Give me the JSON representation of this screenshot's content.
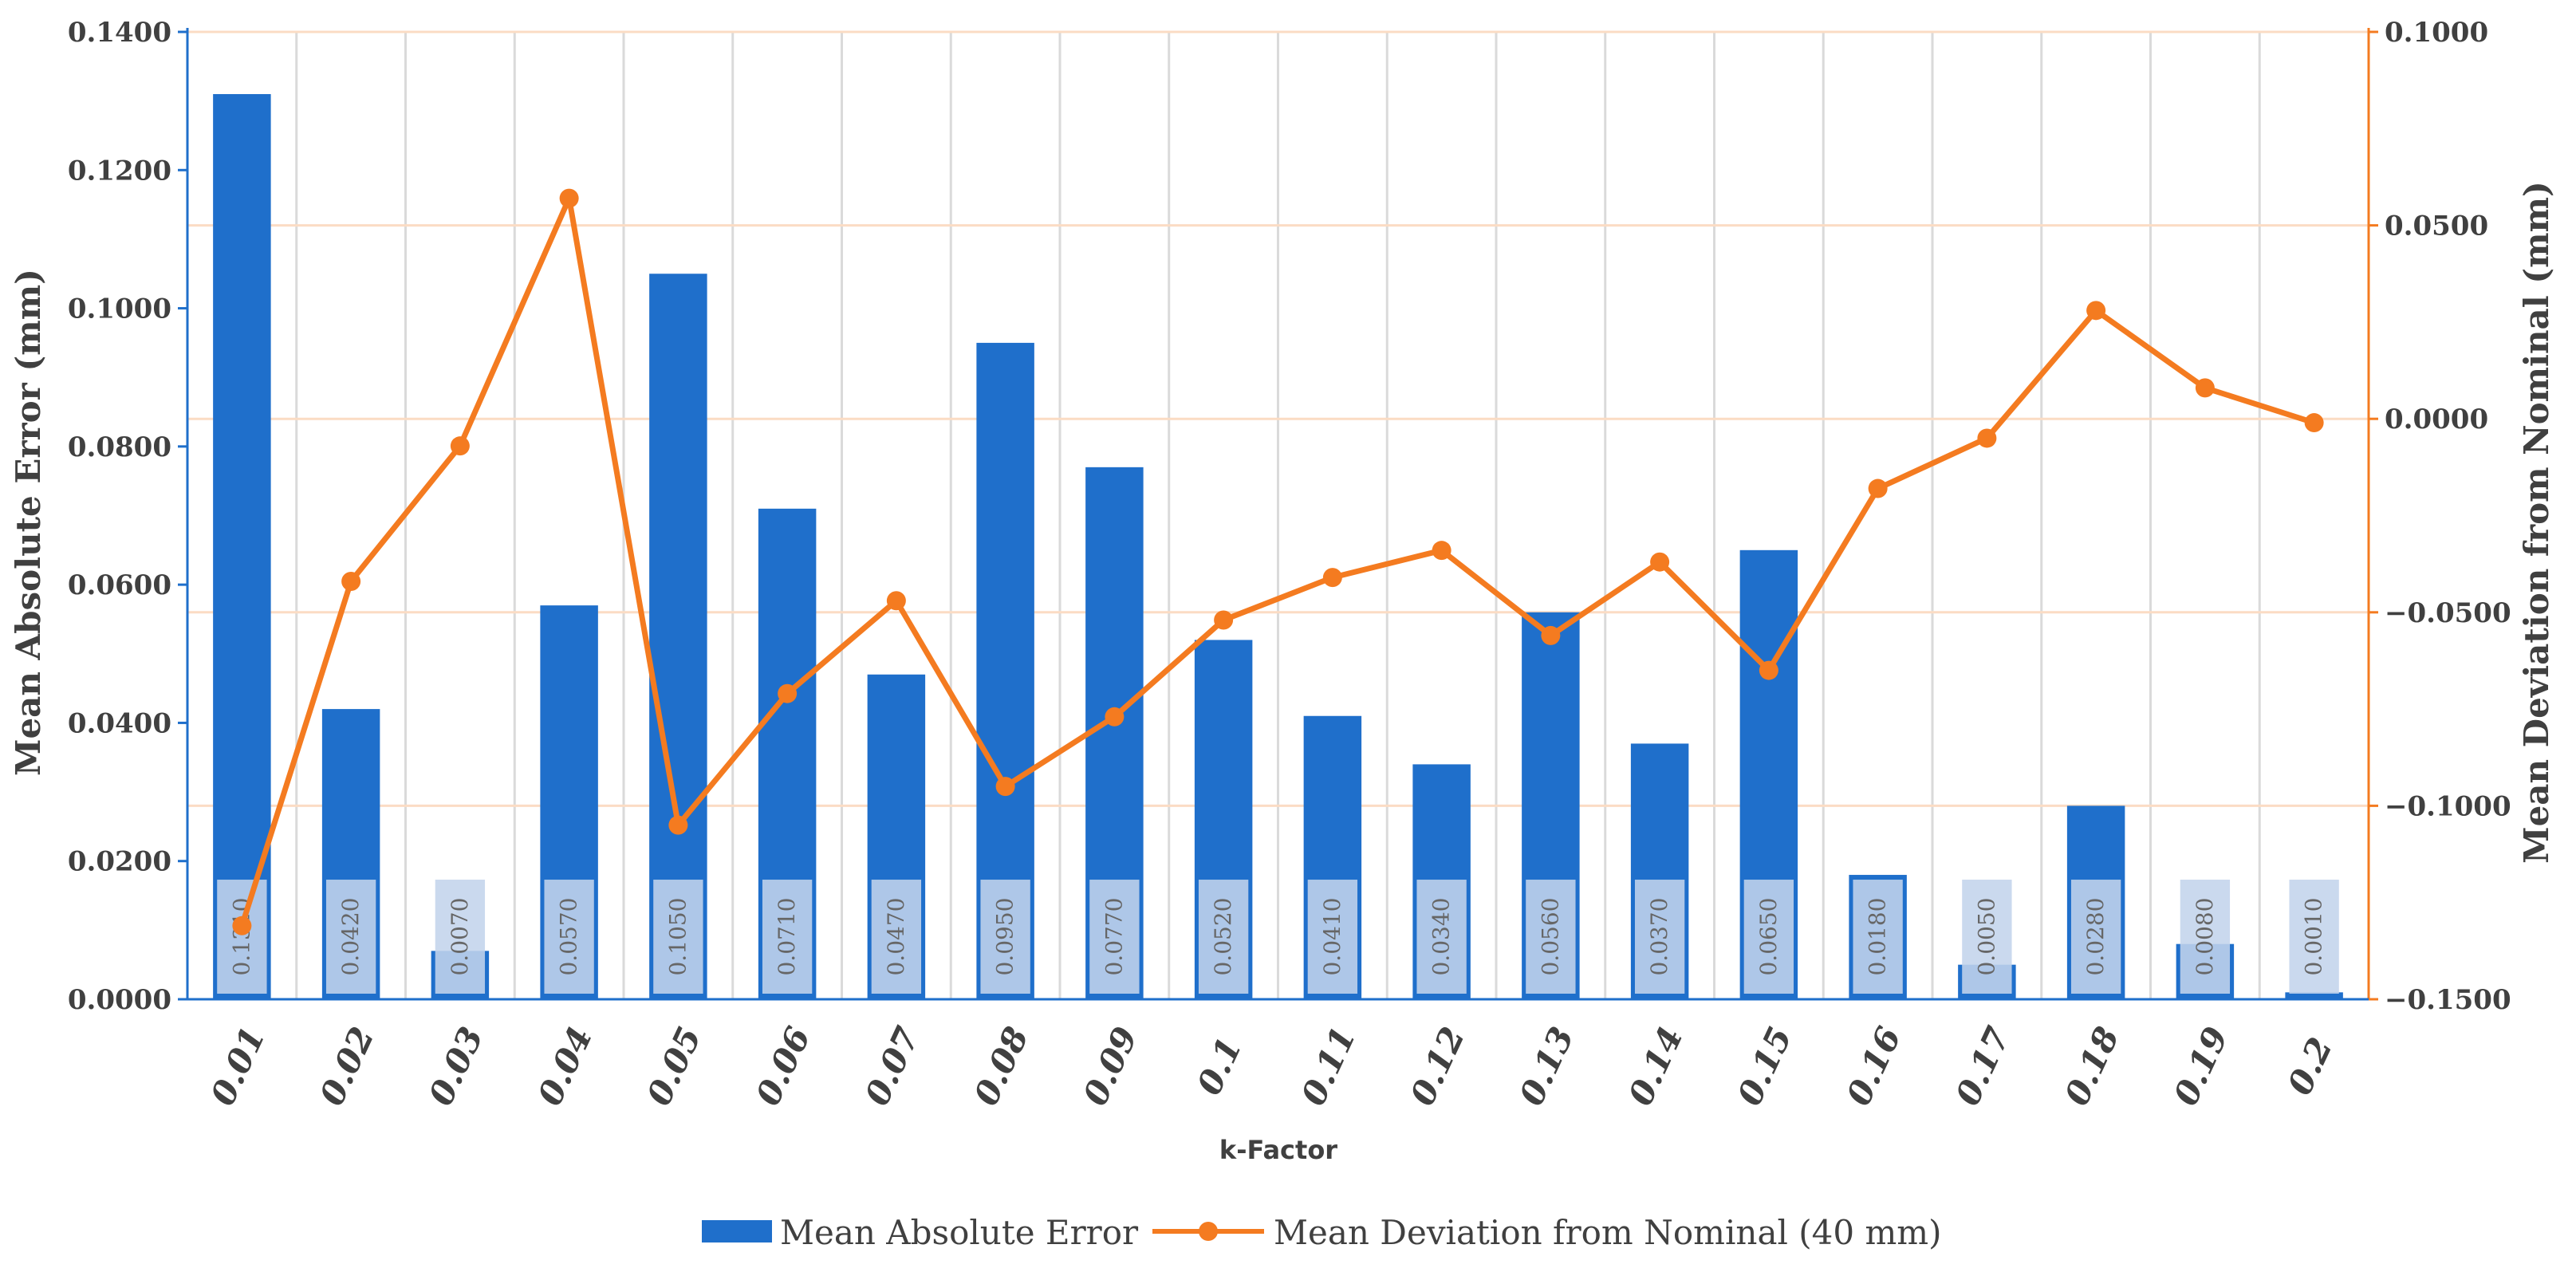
{
  "chart_data": {
    "type": "bar+line",
    "title": "",
    "xlabel": "k-Factor",
    "ylabel_left": "Mean Absolute Error  (mm)",
    "ylabel_right": "Mean Deviation from Nominal  (mm)",
    "ylim_left": [
      0,
      0.14
    ],
    "ylim_right": [
      -0.15,
      0.1
    ],
    "yticks_left": [
      "0.0000",
      "0.0200",
      "0.0400",
      "0.0600",
      "0.0800",
      "0.1000",
      "0.1200",
      "0.1400"
    ],
    "yticks_right": [
      "−0.1500",
      "−0.1000",
      "−0.0500",
      "0.0000",
      "0.0500",
      "0.1000"
    ],
    "categories": [
      "0.01",
      "0.02",
      "0.03",
      "0.04",
      "0.05",
      "0.06",
      "0.07",
      "0.08",
      "0.09",
      "0.1",
      "0.11",
      "0.12",
      "0.13",
      "0.14",
      "0.15",
      "0.16",
      "0.17",
      "0.18",
      "0.19",
      "0.2"
    ],
    "series": [
      {
        "name": "Mean Absolute Error",
        "type": "bar",
        "axis": "left",
        "color": "#1F6FCB",
        "values": [
          0.131,
          0.042,
          0.007,
          0.057,
          0.105,
          0.071,
          0.047,
          0.095,
          0.077,
          0.052,
          0.041,
          0.034,
          0.056,
          0.037,
          0.065,
          0.018,
          0.005,
          0.028,
          0.008,
          0.001
        ],
        "labels": [
          "0.1310",
          "0.0420",
          "0.0070",
          "0.0570",
          "0.1050",
          "0.0710",
          "0.0470",
          "0.0950",
          "0.0770",
          "0.0520",
          "0.0410",
          "0.0340",
          "0.0560",
          "0.0370",
          "0.0650",
          "0.0180",
          "0.0050",
          "0.0280",
          "0.0080",
          "0.0010"
        ]
      },
      {
        "name": "Mean Deviation from Nominal (40 mm)",
        "type": "line",
        "axis": "right",
        "color": "#F47B20",
        "values": [
          -0.131,
          -0.042,
          -0.007,
          0.057,
          -0.105,
          -0.071,
          -0.047,
          -0.095,
          -0.077,
          -0.052,
          -0.041,
          -0.034,
          -0.056,
          -0.037,
          -0.065,
          -0.018,
          -0.005,
          0.028,
          0.008,
          -0.001
        ]
      }
    ],
    "grid": true,
    "legend_position": "bottom"
  }
}
